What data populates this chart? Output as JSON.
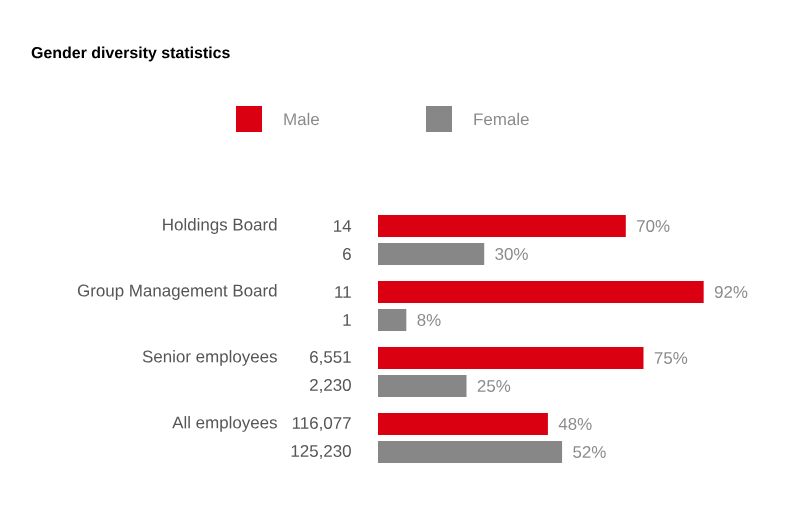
{
  "chart_data": {
    "type": "bar",
    "orientation": "horizontal",
    "title": "Gender diversity statistics",
    "categories": [
      "Holdings Board",
      "Group Management Board",
      "Senior employees",
      "All employees"
    ],
    "series": [
      {
        "name": "Male",
        "color": "#db0011",
        "values": [
          70,
          92,
          75,
          48
        ],
        "value_labels": [
          "70%",
          "92%",
          "75%",
          "48%"
        ]
      },
      {
        "name": "Female",
        "color": "#878787",
        "values": [
          30,
          8,
          25,
          52
        ],
        "value_labels": [
          "30%",
          "8%",
          "25%",
          "52%"
        ]
      }
    ],
    "annotations": [
      "14",
      "6",
      "11",
      "1",
      "6,551",
      "2,230",
      "116,077",
      "125,230"
    ],
    "legend": "top"
  }
}
